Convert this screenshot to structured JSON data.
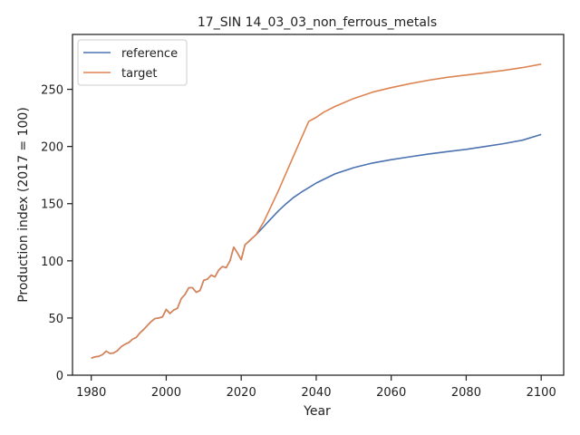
{
  "chart_data": {
    "type": "line",
    "title": "17_SIN 14_03_03_non_ferrous_metals",
    "xlabel": "Year",
    "ylabel": "Production index (2017 = 100)",
    "xlim": [
      1975,
      2106
    ],
    "ylim": [
      0,
      298
    ],
    "xticks": [
      1980,
      2000,
      2020,
      2040,
      2060,
      2080,
      2100
    ],
    "yticks": [
      0,
      50,
      100,
      150,
      200,
      250
    ],
    "grid": false,
    "legend": "top-left",
    "series": [
      {
        "name": "reference",
        "color": "#4c72b0",
        "points": [
          [
            1980,
            15
          ],
          [
            1981,
            16
          ],
          [
            1982,
            16.5
          ],
          [
            1983,
            18
          ],
          [
            1984,
            21
          ],
          [
            1985,
            19
          ],
          [
            1986,
            19.5
          ],
          [
            1987,
            21.5
          ],
          [
            1988,
            25
          ],
          [
            1989,
            27
          ],
          [
            1990,
            28.5
          ],
          [
            1991,
            31.5
          ],
          [
            1992,
            33
          ],
          [
            1993,
            37
          ],
          [
            1994,
            40
          ],
          [
            1995,
            43.5
          ],
          [
            1996,
            47
          ],
          [
            1997,
            49.5
          ],
          [
            1998,
            50
          ],
          [
            1999,
            51
          ],
          [
            2000,
            57.5
          ],
          [
            2001,
            54
          ],
          [
            2002,
            57
          ],
          [
            2003,
            58.5
          ],
          [
            2004,
            67
          ],
          [
            2005,
            70.5
          ],
          [
            2006,
            76.5
          ],
          [
            2007,
            76.5
          ],
          [
            2008,
            72.5
          ],
          [
            2009,
            74
          ],
          [
            2010,
            83
          ],
          [
            2011,
            84
          ],
          [
            2012,
            87.5
          ],
          [
            2013,
            86
          ],
          [
            2014,
            92
          ],
          [
            2015,
            95
          ],
          [
            2016,
            94
          ],
          [
            2017,
            100
          ],
          [
            2018,
            112
          ],
          [
            2019,
            107
          ],
          [
            2020,
            101
          ],
          [
            2021,
            114
          ],
          [
            2022,
            117
          ],
          [
            2023,
            120
          ],
          [
            2024,
            123
          ],
          [
            2026,
            130
          ],
          [
            2028,
            137
          ],
          [
            2030,
            144
          ],
          [
            2032,
            150
          ],
          [
            2034,
            155.5
          ],
          [
            2036,
            160
          ],
          [
            2038,
            164
          ],
          [
            2040,
            168
          ],
          [
            2045,
            176
          ],
          [
            2050,
            181.5
          ],
          [
            2055,
            185.5
          ],
          [
            2060,
            188.5
          ],
          [
            2065,
            191
          ],
          [
            2070,
            193.5
          ],
          [
            2075,
            195.5
          ],
          [
            2080,
            197.5
          ],
          [
            2085,
            200
          ],
          [
            2090,
            202.5
          ],
          [
            2095,
            205.5
          ],
          [
            2100,
            210.5
          ]
        ]
      },
      {
        "name": "target",
        "color": "#dd8452",
        "points": [
          [
            1980,
            15
          ],
          [
            1981,
            16
          ],
          [
            1982,
            16.5
          ],
          [
            1983,
            18
          ],
          [
            1984,
            21
          ],
          [
            1985,
            19
          ],
          [
            1986,
            19.5
          ],
          [
            1987,
            21.5
          ],
          [
            1988,
            25
          ],
          [
            1989,
            27
          ],
          [
            1990,
            28.5
          ],
          [
            1991,
            31.5
          ],
          [
            1992,
            33
          ],
          [
            1993,
            37
          ],
          [
            1994,
            40
          ],
          [
            1995,
            43.5
          ],
          [
            1996,
            47
          ],
          [
            1997,
            49.5
          ],
          [
            1998,
            50
          ],
          [
            1999,
            51
          ],
          [
            2000,
            57.5
          ],
          [
            2001,
            54
          ],
          [
            2002,
            57
          ],
          [
            2003,
            58.5
          ],
          [
            2004,
            67
          ],
          [
            2005,
            70.5
          ],
          [
            2006,
            76.5
          ],
          [
            2007,
            76.5
          ],
          [
            2008,
            72.5
          ],
          [
            2009,
            74
          ],
          [
            2010,
            83
          ],
          [
            2011,
            84
          ],
          [
            2012,
            87.5
          ],
          [
            2013,
            86
          ],
          [
            2014,
            92
          ],
          [
            2015,
            95
          ],
          [
            2016,
            94
          ],
          [
            2017,
            100
          ],
          [
            2018,
            112
          ],
          [
            2019,
            107
          ],
          [
            2020,
            101
          ],
          [
            2021,
            114
          ],
          [
            2022,
            117
          ],
          [
            2023,
            120
          ],
          [
            2024,
            123
          ],
          [
            2026,
            134
          ],
          [
            2028,
            148
          ],
          [
            2030,
            162
          ],
          [
            2032,
            177
          ],
          [
            2034,
            192
          ],
          [
            2036,
            207
          ],
          [
            2038,
            222
          ],
          [
            2040,
            225.5
          ],
          [
            2042,
            230
          ],
          [
            2045,
            235
          ],
          [
            2050,
            242
          ],
          [
            2055,
            247.5
          ],
          [
            2060,
            251.5
          ],
          [
            2065,
            255
          ],
          [
            2070,
            258
          ],
          [
            2075,
            260.5
          ],
          [
            2080,
            262.5
          ],
          [
            2085,
            264.5
          ],
          [
            2090,
            266.5
          ],
          [
            2095,
            269
          ],
          [
            2100,
            272
          ]
        ]
      }
    ]
  }
}
